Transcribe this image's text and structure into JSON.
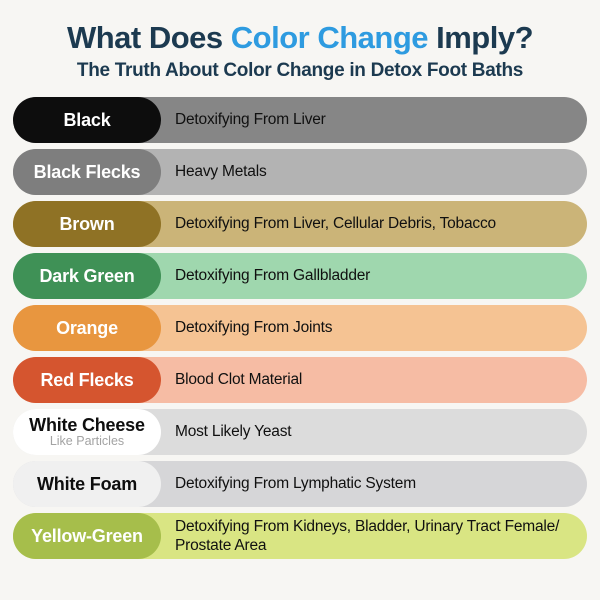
{
  "colors": {
    "page_bg": "#F7F6F3",
    "navy": "#1C3A50",
    "accent_blue": "#2E9BE0"
  },
  "header": {
    "title_part1": "What Does ",
    "title_accent": "Color Change",
    "title_part2": " Imply?",
    "subtitle": "The Truth About Color Change in Detox Foot Baths"
  },
  "rows": [
    {
      "label": "Black",
      "sublabel": "",
      "desc": "Detoxifying From Liver",
      "pill_bg": "#0D0D0D",
      "pill_text": "#FFFFFF",
      "row_bg": "#868686"
    },
    {
      "label": "Black Flecks",
      "sublabel": "",
      "desc": "Heavy Metals",
      "pill_bg": "#7E7E7E",
      "pill_text": "#FFFFFF",
      "row_bg": "#B3B3B3"
    },
    {
      "label": "Brown",
      "sublabel": "",
      "desc": "Detoxifying From Liver, Cellular Debris, Tobacco",
      "pill_bg": "#8F7225",
      "pill_text": "#FFFFFF",
      "row_bg": "#CBB478"
    },
    {
      "label": "Dark Green",
      "sublabel": "",
      "desc": "Detoxifying From Gallbladder",
      "pill_bg": "#3F9156",
      "pill_text": "#FFFFFF",
      "row_bg": "#9FD7AE"
    },
    {
      "label": "Orange",
      "sublabel": "",
      "desc": "Detoxifying From Joints",
      "pill_bg": "#E8963F",
      "pill_text": "#FFFFFF",
      "row_bg": "#F5C393"
    },
    {
      "label": "Red Flecks",
      "sublabel": "",
      "desc": "Blood Clot Material",
      "pill_bg": "#D5552F",
      "pill_text": "#FFFFFF",
      "row_bg": "#F6BCA4"
    },
    {
      "label": "White Cheese",
      "sublabel": "Like Particles",
      "desc": "Most Likely Yeast",
      "pill_bg": "#FFFFFF",
      "pill_text": "#0E0E0E",
      "row_bg": "#DCDCDC"
    },
    {
      "label": "White Foam",
      "sublabel": "",
      "desc": "Detoxifying From Lymphatic System",
      "pill_bg": "#F0F0F0",
      "pill_text": "#0E0E0E",
      "row_bg": "#D6D6D8"
    },
    {
      "label": "Yellow-Green",
      "sublabel": "",
      "desc": "Detoxifying From Kidneys, Bladder, Urinary Tract Female/ Prostate Area",
      "pill_bg": "#A6BE4B",
      "pill_text": "#FFFFFF",
      "row_bg": "#D9E583"
    }
  ]
}
